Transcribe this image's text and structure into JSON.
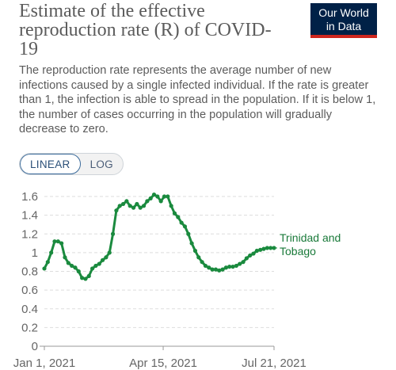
{
  "header": {
    "title": "Estimate of the effective reproduction rate (R) of COVID-19",
    "subtitle": "The reproduction rate represents the average number of new infections caused by a single infected individual. If the rate is greater than 1, the infection is able to spread in the population. If it is below 1, the number of cases occurring in the population will gradually decrease to zero."
  },
  "logo": {
    "line1": "Our World",
    "line2": "in Data"
  },
  "toggle": {
    "linear_label": "LINEAR",
    "log_label": "LOG",
    "selected": "LINEAR"
  },
  "colors": {
    "series": "#1a8a3e",
    "logo_bg": "#002147",
    "logo_accent": "#ce261e"
  },
  "chart_data": {
    "type": "line",
    "title": "Estimate of the effective reproduction rate (R) of COVID-19",
    "xlabel": "",
    "ylabel": "",
    "ylim": [
      0,
      1.6
    ],
    "yticks": [
      0,
      0.2,
      0.4,
      0.6,
      0.8,
      1,
      1.2,
      1.4,
      1.6
    ],
    "xticks": [
      "Jan 1, 2021",
      "Apr 15, 2021",
      "Jul 21, 2021"
    ],
    "xlim": [
      "2021-01-01",
      "2021-07-21"
    ],
    "grid": true,
    "series": [
      {
        "name": "Trinidad and Tobago",
        "x": [
          "2021-01-01",
          "2021-01-04",
          "2021-01-07",
          "2021-01-10",
          "2021-01-13",
          "2021-01-16",
          "2021-01-19",
          "2021-01-22",
          "2021-01-25",
          "2021-01-28",
          "2021-01-31",
          "2021-02-03",
          "2021-02-06",
          "2021-02-09",
          "2021-02-12",
          "2021-02-15",
          "2021-02-18",
          "2021-02-21",
          "2021-02-24",
          "2021-02-27",
          "2021-03-02",
          "2021-03-05",
          "2021-03-08",
          "2021-03-11",
          "2021-03-14",
          "2021-03-17",
          "2021-03-20",
          "2021-03-23",
          "2021-03-26",
          "2021-03-29",
          "2021-04-01",
          "2021-04-04",
          "2021-04-07",
          "2021-04-10",
          "2021-04-13",
          "2021-04-16",
          "2021-04-19",
          "2021-04-22",
          "2021-04-25",
          "2021-04-28",
          "2021-05-01",
          "2021-05-04",
          "2021-05-07",
          "2021-05-10",
          "2021-05-13",
          "2021-05-16",
          "2021-05-19",
          "2021-05-22",
          "2021-05-25",
          "2021-05-28",
          "2021-05-31",
          "2021-06-03",
          "2021-06-06",
          "2021-06-09",
          "2021-06-12",
          "2021-06-15",
          "2021-06-18",
          "2021-06-21",
          "2021-06-24",
          "2021-06-27",
          "2021-06-30",
          "2021-07-03",
          "2021-07-06",
          "2021-07-09",
          "2021-07-12",
          "2021-07-15",
          "2021-07-18",
          "2021-07-21"
        ],
        "y": [
          0.83,
          0.9,
          1.0,
          1.12,
          1.12,
          1.1,
          0.95,
          0.89,
          0.86,
          0.84,
          0.8,
          0.73,
          0.72,
          0.75,
          0.83,
          0.86,
          0.88,
          0.92,
          0.95,
          1.0,
          1.2,
          1.45,
          1.5,
          1.52,
          1.55,
          1.5,
          1.48,
          1.52,
          1.48,
          1.5,
          1.55,
          1.58,
          1.62,
          1.6,
          1.55,
          1.6,
          1.6,
          1.5,
          1.42,
          1.38,
          1.32,
          1.28,
          1.2,
          1.1,
          1.02,
          0.95,
          0.9,
          0.86,
          0.84,
          0.82,
          0.82,
          0.81,
          0.82,
          0.84,
          0.85,
          0.85,
          0.86,
          0.88,
          0.9,
          0.94,
          0.97,
          0.99,
          1.02,
          1.03,
          1.04,
          1.05,
          1.05,
          1.05
        ]
      }
    ]
  }
}
